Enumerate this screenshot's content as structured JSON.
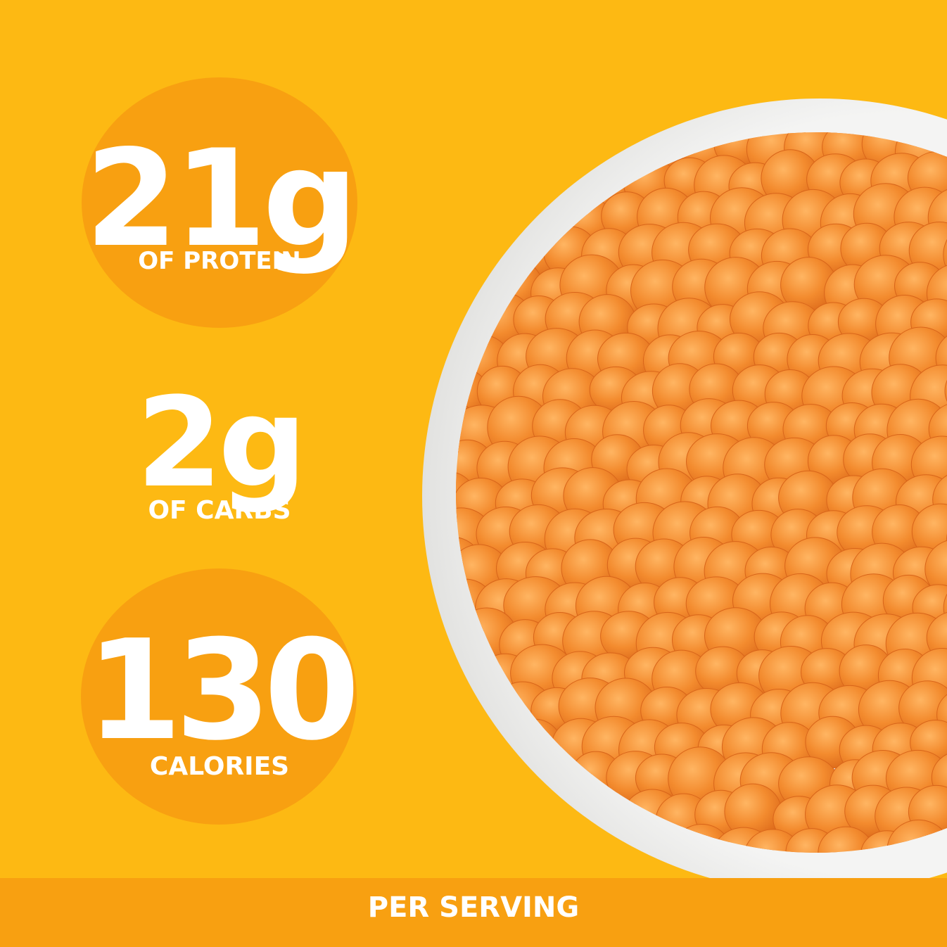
{
  "colors": {
    "background": "#FDB913",
    "circle": "#F8A011",
    "footer_bar": "#F8A011",
    "text": "#FFFFFF",
    "bowl": "#F3F3F2",
    "puff": "#F28A2C"
  },
  "stats": {
    "protein": {
      "value": "21g",
      "label": "OF PROTEIN"
    },
    "carbs": {
      "value": "2g",
      "label": "OF CARBS"
    },
    "calories": {
      "value": "130",
      "label": "CALORIES"
    }
  },
  "footer": {
    "label": "PER SERVING"
  },
  "image": {
    "icon": "bowl-of-cheese-puffs-icon"
  }
}
